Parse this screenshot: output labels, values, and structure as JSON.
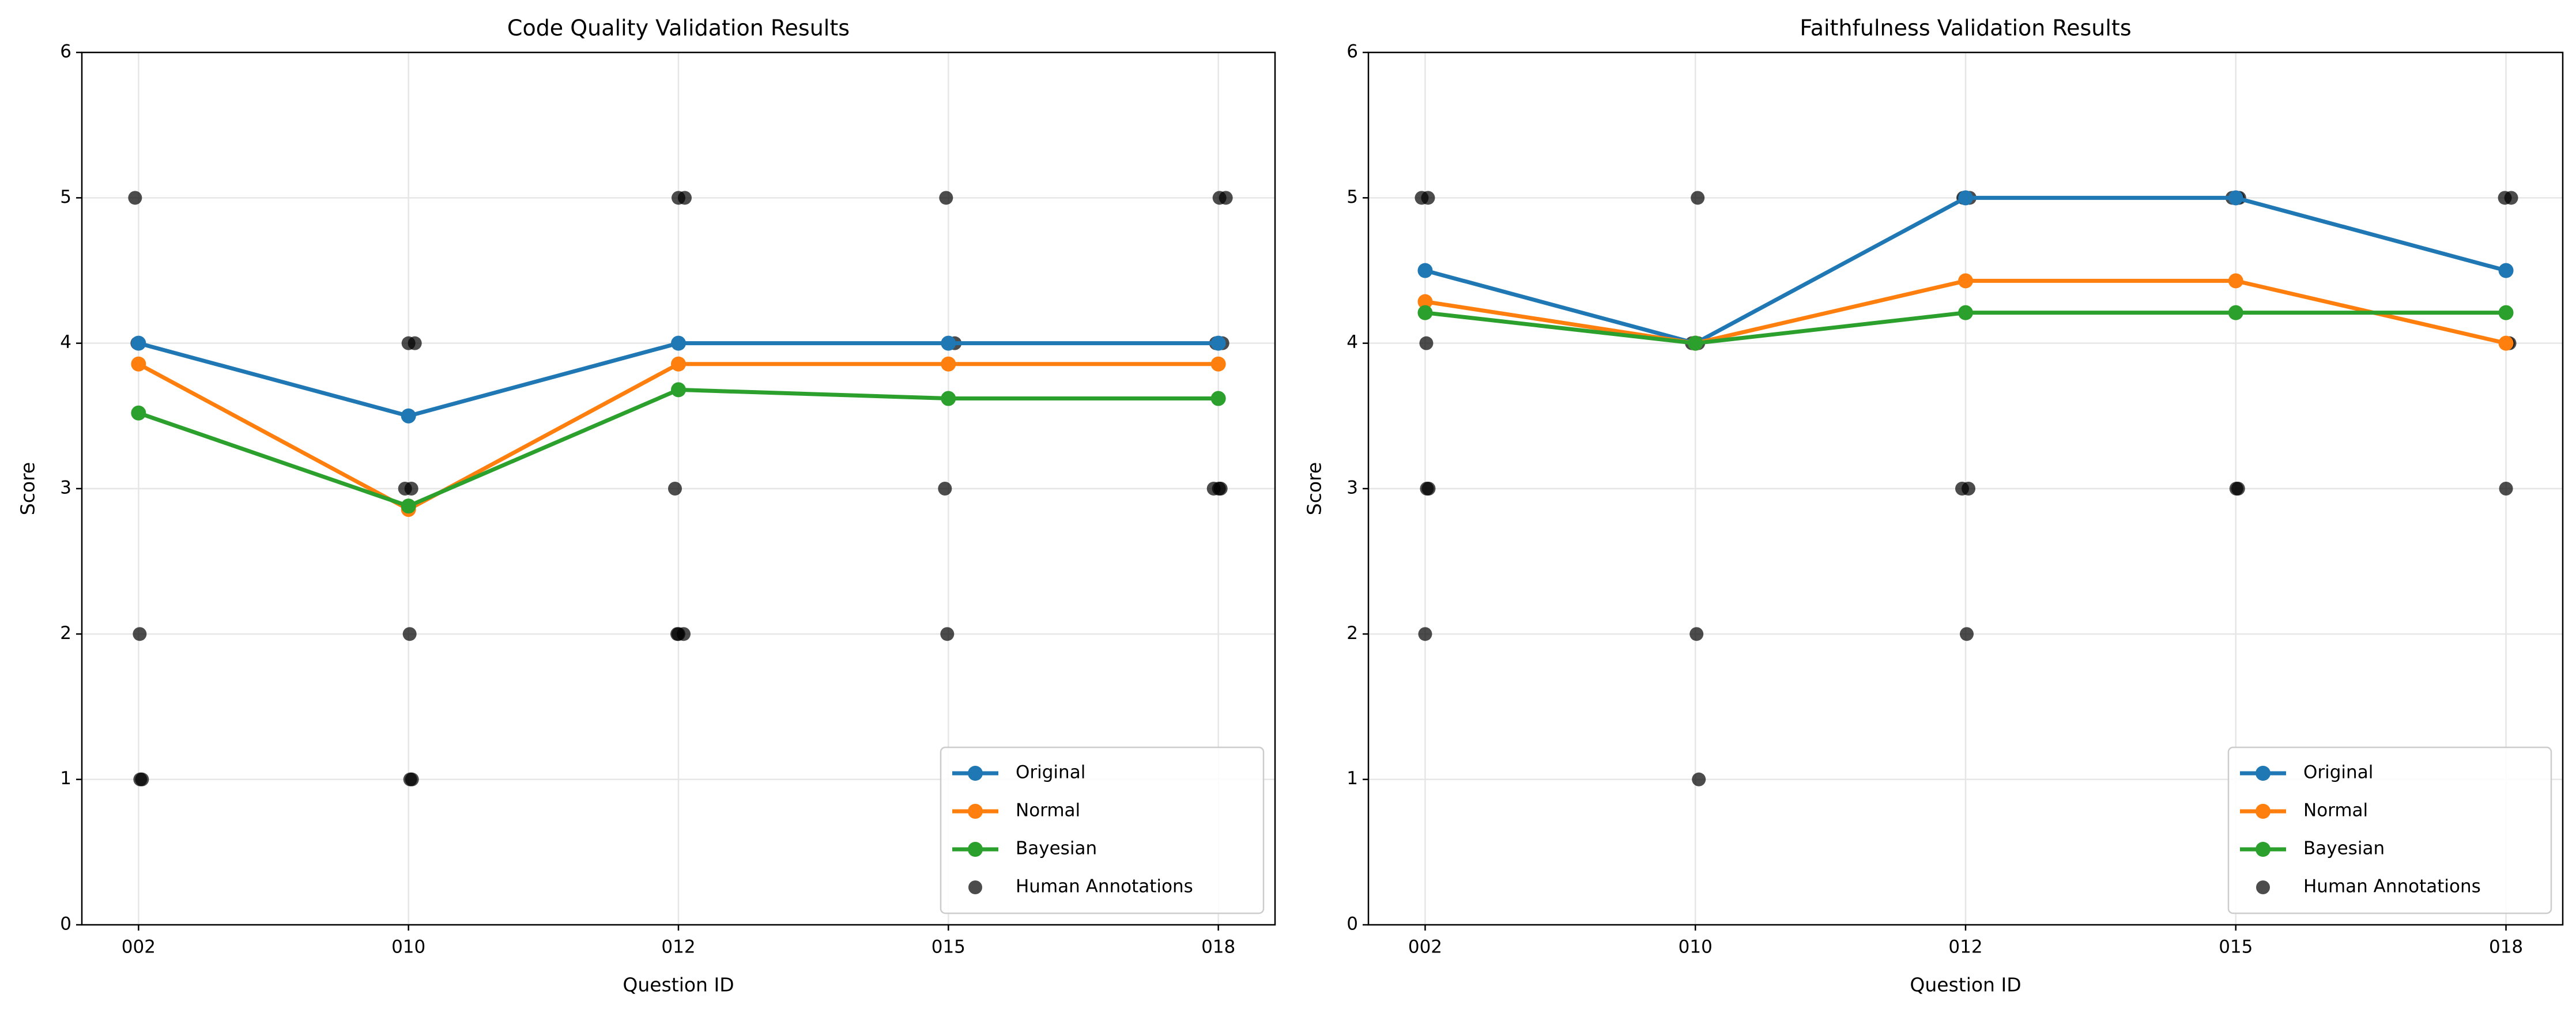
{
  "chart_data": [
    {
      "type": "line",
      "title": "Code Quality Validation Results",
      "x_label": "Question ID",
      "y_label": "Score",
      "categories": [
        "002",
        "010",
        "012",
        "015",
        "018"
      ],
      "series": [
        {
          "name": "Original",
          "color": "#1f77b4",
          "values": [
            4,
            3.5,
            4,
            4,
            4
          ]
        },
        {
          "name": "Normal",
          "color": "#ff7f0e",
          "values": [
            3.857,
            2.857,
            3.857,
            3.857,
            3.857
          ]
        },
        {
          "name": "Bayesian",
          "color": "#2ca02c",
          "values": [
            3.52,
            2.88,
            3.68,
            3.62,
            3.62
          ]
        }
      ],
      "annotations": {
        "name": "Human Annotations",
        "color": "#000000",
        "x": [
          "002",
          "002",
          "002",
          "002",
          "002",
          "010",
          "010",
          "010",
          "010",
          "010",
          "010",
          "010",
          "012",
          "012",
          "012",
          "012",
          "012",
          "012",
          "015",
          "015",
          "015",
          "015",
          "015",
          "018",
          "018",
          "018",
          "018",
          "018",
          "018",
          "018"
        ],
        "values": [
          5,
          4,
          2,
          1,
          1,
          4,
          4,
          3,
          3,
          2,
          1,
          1,
          5,
          5,
          3,
          2,
          2,
          2,
          5,
          4,
          4,
          3,
          2,
          5,
          5,
          4,
          4,
          3,
          3,
          3
        ]
      },
      "ylim": [
        0,
        6
      ],
      "yticks": [
        0,
        1,
        2,
        3,
        4,
        5,
        6
      ],
      "grid": true,
      "legend": "lower right"
    },
    {
      "type": "line",
      "title": "Faithfulness Validation Results",
      "x_label": "Question ID",
      "y_label": "Score",
      "categories": [
        "002",
        "010",
        "012",
        "015",
        "018"
      ],
      "series": [
        {
          "name": "Original",
          "color": "#1f77b4",
          "values": [
            4.5,
            4,
            5,
            5,
            4.5
          ]
        },
        {
          "name": "Normal",
          "color": "#ff7f0e",
          "values": [
            4.286,
            4,
            4.429,
            4.429,
            4
          ]
        },
        {
          "name": "Bayesian",
          "color": "#2ca02c",
          "values": [
            4.21,
            4,
            4.21,
            4.21,
            4.21
          ]
        }
      ],
      "annotations": {
        "name": "Human Annotations",
        "color": "#000000",
        "x": [
          "002",
          "002",
          "002",
          "002",
          "002",
          "002",
          "010",
          "010",
          "010",
          "010",
          "010",
          "012",
          "012",
          "012",
          "012",
          "012",
          "012",
          "015",
          "015",
          "015",
          "015",
          "015",
          "018",
          "018",
          "018",
          "018",
          "018"
        ],
        "values": [
          5,
          5,
          4,
          3,
          3,
          2,
          5,
          4,
          4,
          2,
          1,
          5,
          5,
          5,
          3,
          3,
          2,
          5,
          5,
          5,
          3,
          3,
          5,
          5,
          4,
          4,
          3
        ]
      },
      "ylim": [
        0,
        6
      ],
      "yticks": [
        0,
        1,
        2,
        3,
        4,
        5,
        6
      ],
      "grid": true,
      "legend": "lower right"
    }
  ]
}
